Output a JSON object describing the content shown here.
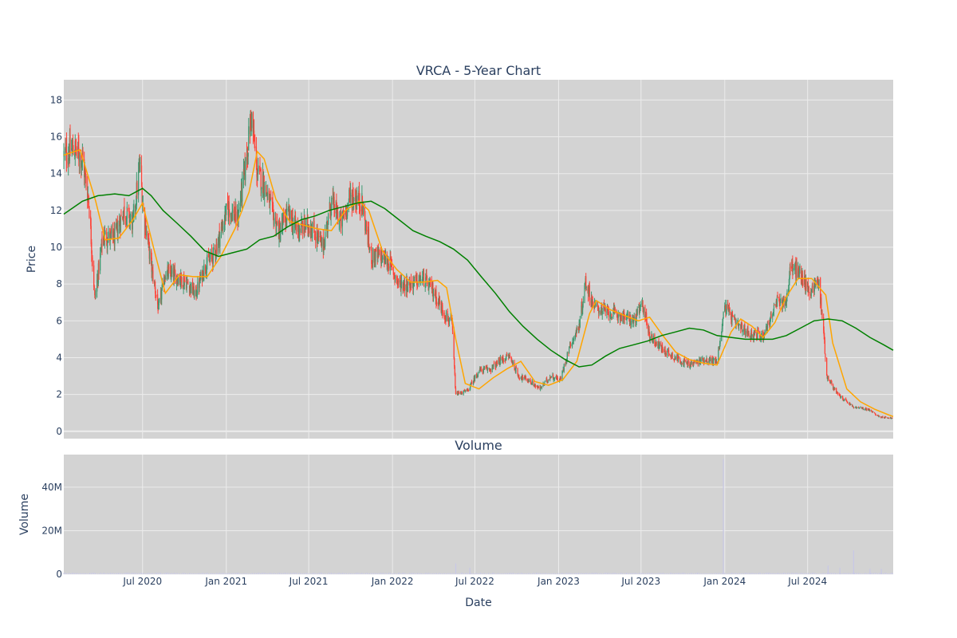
{
  "chart_data": {
    "type": "candlestick",
    "title": "VRCA - 5-Year Chart",
    "subplot_title": "Volume",
    "xlabel": "Date",
    "price_ylabel": "Price",
    "volume_ylabel": "Volume",
    "price_ylim": [
      -0.4,
      19.1
    ],
    "volume_ylim": [
      0,
      55000000
    ],
    "grid": true,
    "x_ticks": [
      "Jul 2020",
      "Jan 2021",
      "Jul 2021",
      "Jan 2022",
      "Jul 2022",
      "Jan 2023",
      "Jul 2023",
      "Jan 2024",
      "Jul 2024"
    ],
    "price_ticks": [
      "0",
      "2",
      "4",
      "6",
      "8",
      "10",
      "12",
      "14",
      "16",
      "18"
    ],
    "volume_ticks": [
      "0",
      "20M",
      "40M"
    ],
    "colors": {
      "increasing": "#3d9970",
      "decreasing": "#ff4136",
      "short_ma": "#ffa500",
      "long_ma": "#008000",
      "volume": "#c8c8e6",
      "plot_bg": "#d3d3d3",
      "grid": "#ececec"
    },
    "x_range": [
      "2020-01-10",
      "2025-01-05"
    ],
    "price_close_path": [
      [
        "2020-01-10",
        15.0
      ],
      [
        "2020-02-01",
        15.4
      ],
      [
        "2020-02-20",
        14.8
      ],
      [
        "2020-03-05",
        12.5
      ],
      [
        "2020-03-18",
        7.2
      ],
      [
        "2020-04-05",
        10.6
      ],
      [
        "2020-05-01",
        10.5
      ],
      [
        "2020-05-20",
        12.0
      ],
      [
        "2020-06-10",
        11.3
      ],
      [
        "2020-06-25",
        14.5
      ],
      [
        "2020-07-03",
        12.0
      ],
      [
        "2020-07-20",
        9.0
      ],
      [
        "2020-08-05",
        6.6
      ],
      [
        "2020-08-20",
        8.6
      ],
      [
        "2020-09-15",
        8.4
      ],
      [
        "2020-10-10",
        8.0
      ],
      [
        "2020-10-25",
        7.4
      ],
      [
        "2020-11-15",
        9.0
      ],
      [
        "2020-12-05",
        9.6
      ],
      [
        "2021-01-05",
        12.2
      ],
      [
        "2021-01-25",
        11.5
      ],
      [
        "2021-02-10",
        14.0
      ],
      [
        "2021-02-25",
        17.2
      ],
      [
        "2021-03-10",
        14.0
      ],
      [
        "2021-03-25",
        13.5
      ],
      [
        "2021-04-10",
        12.0
      ],
      [
        "2021-04-28",
        10.8
      ],
      [
        "2021-05-15",
        11.8
      ],
      [
        "2021-06-05",
        11.0
      ],
      [
        "2021-07-05",
        11.2
      ],
      [
        "2021-08-01",
        10.0
      ],
      [
        "2021-08-20",
        12.5
      ],
      [
        "2021-09-10",
        11.3
      ],
      [
        "2021-10-01",
        12.8
      ],
      [
        "2021-10-25",
        12.5
      ],
      [
        "2021-11-15",
        9.5
      ],
      [
        "2021-12-05",
        9.5
      ],
      [
        "2021-12-25",
        9.2
      ],
      [
        "2022-01-15",
        8.0
      ],
      [
        "2022-02-10",
        8.0
      ],
      [
        "2022-03-10",
        8.3
      ],
      [
        "2022-04-01",
        7.6
      ],
      [
        "2022-04-25",
        6.4
      ],
      [
        "2022-05-12",
        5.8
      ],
      [
        "2022-05-20",
        2.0
      ],
      [
        "2022-06-15",
        2.2
      ],
      [
        "2022-07-10",
        3.3
      ],
      [
        "2022-08-05",
        3.4
      ],
      [
        "2022-08-25",
        3.8
      ],
      [
        "2022-09-15",
        4.1
      ],
      [
        "2022-10-05",
        3.0
      ],
      [
        "2022-10-25",
        2.8
      ],
      [
        "2022-11-20",
        2.3
      ],
      [
        "2022-12-15",
        3.0
      ],
      [
        "2023-01-05",
        2.8
      ],
      [
        "2023-01-25",
        4.6
      ],
      [
        "2023-02-15",
        5.7
      ],
      [
        "2023-03-01",
        8.1
      ],
      [
        "2023-03-20",
        6.8
      ],
      [
        "2023-04-15",
        6.5
      ],
      [
        "2023-05-15",
        6.3
      ],
      [
        "2023-06-15",
        6.0
      ],
      [
        "2023-07-05",
        6.9
      ],
      [
        "2023-07-20",
        5.2
      ],
      [
        "2023-08-15",
        4.5
      ],
      [
        "2023-09-15",
        4.0
      ],
      [
        "2023-10-15",
        3.6
      ],
      [
        "2023-11-15",
        3.9
      ],
      [
        "2023-12-15",
        3.8
      ],
      [
        "2024-01-01",
        6.8
      ],
      [
        "2024-01-25",
        5.8
      ],
      [
        "2024-02-25",
        5.3
      ],
      [
        "2024-03-25",
        5.2
      ],
      [
        "2024-04-25",
        7.0
      ],
      [
        "2024-05-15",
        7.1
      ],
      [
        "2024-05-25",
        9.0
      ],
      [
        "2024-06-15",
        8.5
      ],
      [
        "2024-07-05",
        7.6
      ],
      [
        "2024-07-25",
        8.2
      ],
      [
        "2024-08-05",
        5.5
      ],
      [
        "2024-08-12",
        3.0
      ],
      [
        "2024-09-05",
        2.0
      ],
      [
        "2024-10-10",
        1.3
      ],
      [
        "2024-11-10",
        1.2
      ],
      [
        "2024-12-05",
        0.8
      ],
      [
        "2025-01-05",
        0.7
      ]
    ],
    "moving_average_short": [
      [
        "2020-01-10",
        15.0
      ],
      [
        "2020-02-15",
        15.3
      ],
      [
        "2020-03-20",
        12.5
      ],
      [
        "2020-04-10",
        10.4
      ],
      [
        "2020-05-10",
        10.5
      ],
      [
        "2020-06-10",
        11.5
      ],
      [
        "2020-07-01",
        12.4
      ],
      [
        "2020-07-25",
        10.0
      ],
      [
        "2020-08-20",
        7.5
      ],
      [
        "2020-09-20",
        8.5
      ],
      [
        "2020-10-20",
        8.4
      ],
      [
        "2020-11-20",
        8.4
      ],
      [
        "2020-12-20",
        9.5
      ],
      [
        "2021-01-20",
        11.0
      ],
      [
        "2021-02-20",
        13.0
      ],
      [
        "2021-03-10",
        15.2
      ],
      [
        "2021-03-25",
        14.8
      ],
      [
        "2021-04-20",
        12.6
      ],
      [
        "2021-05-20",
        11.4
      ],
      [
        "2021-06-20",
        11.2
      ],
      [
        "2021-07-20",
        11.0
      ],
      [
        "2021-08-20",
        10.9
      ],
      [
        "2021-09-20",
        12.0
      ],
      [
        "2021-10-20",
        12.5
      ],
      [
        "2021-11-10",
        12.0
      ],
      [
        "2021-12-10",
        9.8
      ],
      [
        "2022-01-10",
        8.8
      ],
      [
        "2022-02-10",
        8.1
      ],
      [
        "2022-03-10",
        8.1
      ],
      [
        "2022-04-10",
        8.2
      ],
      [
        "2022-04-30",
        7.8
      ],
      [
        "2022-05-20",
        5.0
      ],
      [
        "2022-06-10",
        2.6
      ],
      [
        "2022-07-10",
        2.3
      ],
      [
        "2022-08-10",
        2.9
      ],
      [
        "2022-09-10",
        3.4
      ],
      [
        "2022-10-10",
        3.8
      ],
      [
        "2022-11-10",
        2.7
      ],
      [
        "2022-12-10",
        2.5
      ],
      [
        "2023-01-10",
        2.8
      ],
      [
        "2023-02-10",
        3.8
      ],
      [
        "2023-03-10",
        6.4
      ],
      [
        "2023-03-25",
        7.1
      ],
      [
        "2023-04-25",
        6.6
      ],
      [
        "2023-05-25",
        6.3
      ],
      [
        "2023-06-25",
        6.0
      ],
      [
        "2023-07-20",
        6.2
      ],
      [
        "2023-08-15",
        5.3
      ],
      [
        "2023-09-15",
        4.3
      ],
      [
        "2023-10-15",
        3.9
      ],
      [
        "2023-11-15",
        3.7
      ],
      [
        "2023-12-15",
        3.6
      ],
      [
        "2024-01-15",
        5.4
      ],
      [
        "2024-02-05",
        6.1
      ],
      [
        "2024-03-01",
        5.7
      ],
      [
        "2024-03-25",
        5.1
      ],
      [
        "2024-04-20",
        5.9
      ],
      [
        "2024-05-15",
        7.3
      ],
      [
        "2024-06-10",
        8.3
      ],
      [
        "2024-07-10",
        8.3
      ],
      [
        "2024-08-10",
        7.4
      ],
      [
        "2024-08-25",
        4.8
      ],
      [
        "2024-09-25",
        2.3
      ],
      [
        "2024-10-25",
        1.6
      ],
      [
        "2024-11-25",
        1.2
      ],
      [
        "2024-12-25",
        0.9
      ],
      [
        "2025-01-05",
        0.8
      ]
    ],
    "moving_average_long": [
      [
        "2020-01-10",
        11.8
      ],
      [
        "2020-02-20",
        12.5
      ],
      [
        "2020-03-25",
        12.8
      ],
      [
        "2020-05-01",
        12.9
      ],
      [
        "2020-06-01",
        12.8
      ],
      [
        "2020-07-01",
        13.2
      ],
      [
        "2020-07-20",
        12.8
      ],
      [
        "2020-08-15",
        12.0
      ],
      [
        "2020-09-15",
        11.3
      ],
      [
        "2020-10-15",
        10.6
      ],
      [
        "2020-11-15",
        9.8
      ],
      [
        "2020-12-15",
        9.5
      ],
      [
        "2021-01-15",
        9.7
      ],
      [
        "2021-02-15",
        9.9
      ],
      [
        "2021-03-15",
        10.4
      ],
      [
        "2021-04-15",
        10.6
      ],
      [
        "2021-05-15",
        11.1
      ],
      [
        "2021-06-15",
        11.5
      ],
      [
        "2021-07-15",
        11.7
      ],
      [
        "2021-08-15",
        12.0
      ],
      [
        "2021-09-15",
        12.2
      ],
      [
        "2021-10-15",
        12.4
      ],
      [
        "2021-11-15",
        12.5
      ],
      [
        "2021-12-15",
        12.1
      ],
      [
        "2022-01-15",
        11.5
      ],
      [
        "2022-02-15",
        10.9
      ],
      [
        "2022-03-15",
        10.6
      ],
      [
        "2022-04-15",
        10.3
      ],
      [
        "2022-05-15",
        9.9
      ],
      [
        "2022-06-15",
        9.3
      ],
      [
        "2022-07-15",
        8.4
      ],
      [
        "2022-08-15",
        7.5
      ],
      [
        "2022-09-15",
        6.5
      ],
      [
        "2022-10-15",
        5.7
      ],
      [
        "2022-11-15",
        5.0
      ],
      [
        "2022-12-15",
        4.4
      ],
      [
        "2023-01-15",
        3.9
      ],
      [
        "2023-02-15",
        3.5
      ],
      [
        "2023-03-15",
        3.6
      ],
      [
        "2023-04-15",
        4.1
      ],
      [
        "2023-05-15",
        4.5
      ],
      [
        "2023-06-15",
        4.7
      ],
      [
        "2023-07-15",
        4.9
      ],
      [
        "2023-08-15",
        5.2
      ],
      [
        "2023-09-15",
        5.4
      ],
      [
        "2023-10-15",
        5.6
      ],
      [
        "2023-11-15",
        5.5
      ],
      [
        "2023-12-15",
        5.2
      ],
      [
        "2024-01-15",
        5.1
      ],
      [
        "2024-02-15",
        5.0
      ],
      [
        "2024-03-15",
        5.0
      ],
      [
        "2024-04-15",
        5.0
      ],
      [
        "2024-05-15",
        5.2
      ],
      [
        "2024-06-15",
        5.6
      ],
      [
        "2024-07-15",
        6.0
      ],
      [
        "2024-08-15",
        6.1
      ],
      [
        "2024-09-15",
        6.0
      ],
      [
        "2024-10-15",
        5.6
      ],
      [
        "2024-11-15",
        5.1
      ],
      [
        "2024-12-15",
        4.7
      ],
      [
        "2025-01-05",
        4.4
      ]
    ],
    "volume_spikes": [
      [
        "2022-05-20",
        5000000
      ],
      [
        "2022-06-20",
        3000000
      ],
      [
        "2023-12-29",
        53000000
      ],
      [
        "2024-08-15",
        4000000
      ],
      [
        "2024-09-10",
        3000000
      ],
      [
        "2024-10-10",
        11000000
      ],
      [
        "2024-11-15",
        2500000
      ],
      [
        "2024-12-10",
        2500000
      ]
    ],
    "volume_baseline": 500000
  }
}
